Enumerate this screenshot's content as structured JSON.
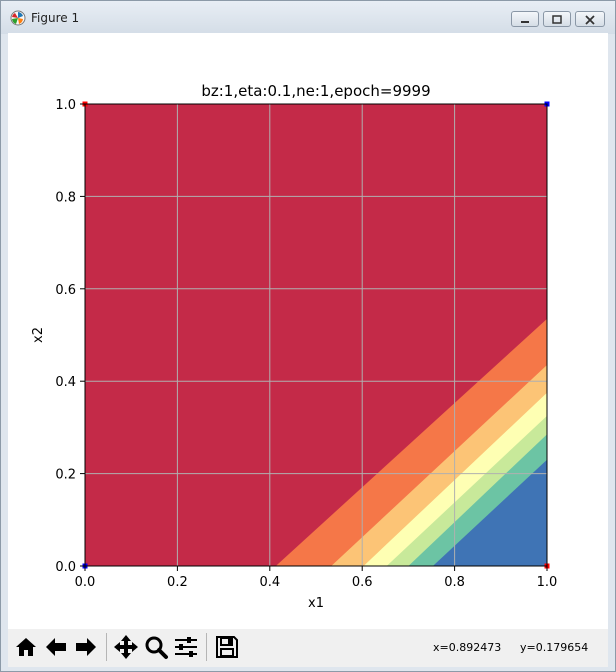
{
  "window": {
    "title": "Figure 1",
    "icon": "matplotlib-logo-icon"
  },
  "toolbar": {
    "buttons": [
      {
        "name": "home-button",
        "icon": "home-icon"
      },
      {
        "name": "back-button",
        "icon": "arrow-left-icon"
      },
      {
        "name": "forward-button",
        "icon": "arrow-right-icon"
      },
      {
        "name": "pan-button",
        "icon": "move-icon"
      },
      {
        "name": "zoom-button",
        "icon": "magnifier-icon"
      },
      {
        "name": "subplots-button",
        "icon": "sliders-icon"
      },
      {
        "name": "save-button",
        "icon": "floppy-disk-icon"
      }
    ],
    "x_readout": "x=0.892473",
    "y_readout": "y=0.179654"
  },
  "chart_data": {
    "type": "contourf",
    "title": "bz:1,eta:0.1,ne:1,epoch=9999",
    "xlabel": "x1",
    "ylabel": "x2",
    "xlim": [
      0.0,
      1.0
    ],
    "ylim": [
      0.0,
      1.0
    ],
    "xticks": [
      "0.0",
      "0.2",
      "0.4",
      "0.6",
      "0.8",
      "1.0"
    ],
    "yticks": [
      "0.0",
      "0.2",
      "0.4",
      "0.6",
      "0.8",
      "1.0"
    ],
    "grid": true,
    "bands": [
      {
        "color": "#c42a48",
        "boundary": [
          [
            0.413,
            0.0
          ],
          [
            1.0,
            0.535
          ]
        ]
      },
      {
        "color": "#f57748",
        "boundary": [
          [
            0.533,
            0.0
          ],
          [
            1.0,
            0.435
          ]
        ]
      },
      {
        "color": "#fcc476",
        "boundary": [
          [
            0.603,
            0.0
          ],
          [
            1.0,
            0.375
          ]
        ]
      },
      {
        "color": "#feffb3",
        "boundary": [
          [
            0.653,
            0.0
          ],
          [
            1.0,
            0.325
          ]
        ]
      },
      {
        "color": "#c8e99a",
        "boundary": [
          [
            0.7,
            0.0
          ],
          [
            1.0,
            0.285
          ]
        ]
      },
      {
        "color": "#6cc4a4",
        "boundary": [
          [
            0.753,
            0.0
          ],
          [
            1.0,
            0.23
          ]
        ]
      },
      {
        "color": "#3f74b5",
        "boundary": null
      }
    ],
    "points": [
      {
        "x": 0.0,
        "y": 0.0,
        "color": "#0000ff"
      },
      {
        "x": 1.0,
        "y": 1.0,
        "color": "#0000ff"
      },
      {
        "x": 0.0,
        "y": 1.0,
        "color": "#ff0000"
      },
      {
        "x": 1.0,
        "y": 0.0,
        "color": "#ff0000"
      }
    ]
  }
}
